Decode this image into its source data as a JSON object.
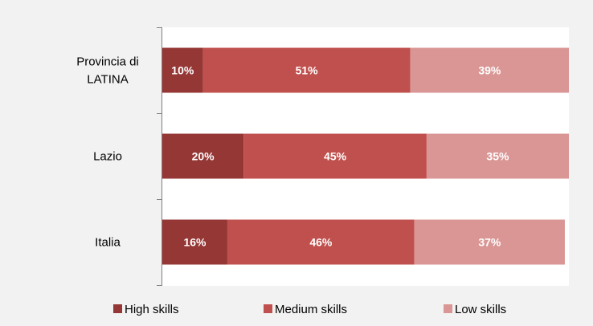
{
  "chart_data": {
    "type": "bar",
    "orientation": "horizontal",
    "stacked": true,
    "categories": [
      [
        "Provincia di",
        "LATINA"
      ],
      [
        "Lazio"
      ],
      [
        "Italia"
      ]
    ],
    "series": [
      {
        "name": "High skills",
        "values": [
          10,
          20,
          16
        ],
        "labels": [
          "10%",
          "20%",
          "16%"
        ],
        "color": "#953735"
      },
      {
        "name": "Medium skills",
        "values": [
          51,
          45,
          46
        ],
        "labels": [
          "51%",
          "45%",
          "46%"
        ],
        "color": "#c0504d"
      },
      {
        "name": "Low skills",
        "values": [
          39,
          35,
          37
        ],
        "labels": [
          "39%",
          "35%",
          "37%"
        ],
        "color": "#d99694"
      }
    ],
    "title": "",
    "xlabel": "",
    "ylabel": "",
    "xlim": [
      0,
      100
    ],
    "grid": false,
    "legend": "bottom"
  }
}
